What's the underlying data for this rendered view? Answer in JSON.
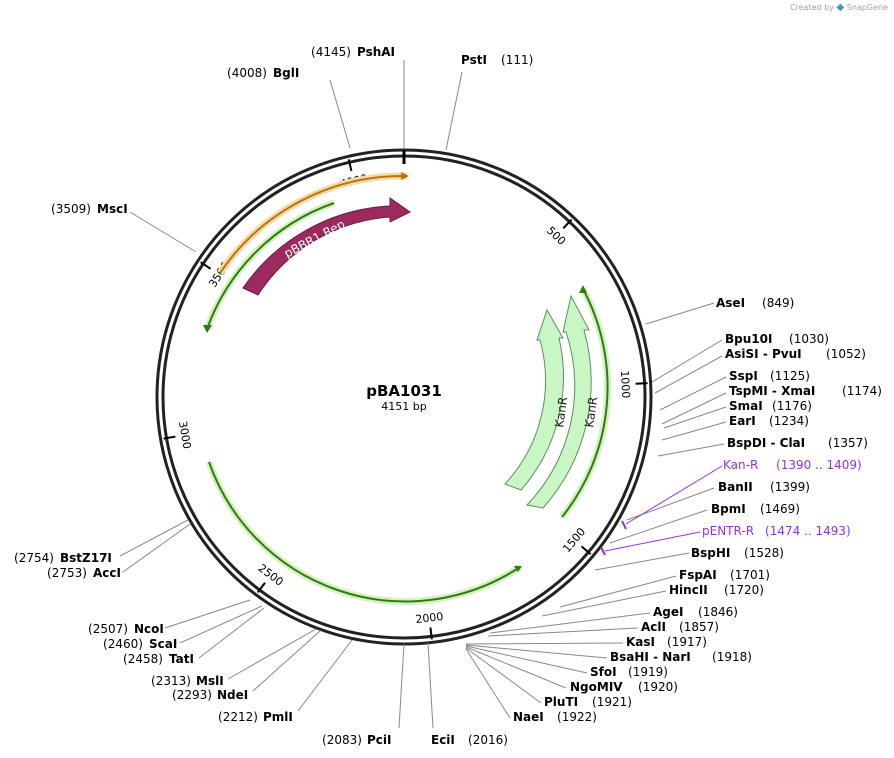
{
  "header": {
    "created_by": "Created by",
    "brand": "SnapGene"
  },
  "plasmid": {
    "name": "pBA1031",
    "length_label": "4151 bp",
    "length": 4151
  },
  "ticks": [
    500,
    1000,
    1500,
    2000,
    2500,
    3000,
    3500,
    4000
  ],
  "enzymes": [
    {
      "label": "PshAI",
      "pos": "4145"
    },
    {
      "label": "PstI",
      "pos": "111"
    },
    {
      "label": "BglI",
      "pos": "4008"
    },
    {
      "label": "MscI",
      "pos": "3509"
    },
    {
      "label": "AseI",
      "pos": "849"
    },
    {
      "label": "Bpu10I",
      "pos": "1030"
    },
    {
      "label": "AsiSI - PvuI",
      "pos": "1052"
    },
    {
      "label": "SspI",
      "pos": "1125"
    },
    {
      "label": "TspMI - XmaI",
      "pos": "1174"
    },
    {
      "label": "SmaI",
      "pos": "1176"
    },
    {
      "label": "EarI",
      "pos": "1234"
    },
    {
      "label": "BspDI - ClaI",
      "pos": "1357"
    },
    {
      "label": "BanII",
      "pos": "1399"
    },
    {
      "label": "BpmI",
      "pos": "1469"
    },
    {
      "label": "BspHI",
      "pos": "1528"
    },
    {
      "label": "FspAI",
      "pos": "1701"
    },
    {
      "label": "HincII",
      "pos": "1720"
    },
    {
      "label": "AgeI",
      "pos": "1846"
    },
    {
      "label": "AclI",
      "pos": "1857"
    },
    {
      "label": "KasI",
      "pos": "1917"
    },
    {
      "label": "BsaHI - NarI",
      "pos": "1918"
    },
    {
      "label": "SfoI",
      "pos": "1919"
    },
    {
      "label": "NgoMIV",
      "pos": "1920"
    },
    {
      "label": "PluTI",
      "pos": "1921"
    },
    {
      "label": "NaeI",
      "pos": "1922"
    },
    {
      "label": "EciI",
      "pos": "2016"
    },
    {
      "label": "PciI",
      "pos": "2083"
    },
    {
      "label": "PmlI",
      "pos": "2212"
    },
    {
      "label": "NdeI",
      "pos": "2293"
    },
    {
      "label": "MslI",
      "pos": "2313"
    },
    {
      "label": "TatI",
      "pos": "2458"
    },
    {
      "label": "ScaI",
      "pos": "2460"
    },
    {
      "label": "NcoI",
      "pos": "2507"
    },
    {
      "label": "AccI",
      "pos": "2753"
    },
    {
      "label": "BstZ17I",
      "pos": "2754"
    }
  ],
  "primers": [
    {
      "label": "Kan-R",
      "range": "1390 .. 1409"
    },
    {
      "label": "pENTR-R",
      "range": "1474 .. 1493"
    }
  ],
  "features": [
    {
      "label": "pBBR1 Rep",
      "color": "#9c2a5e"
    },
    {
      "label": "KanR",
      "color": "#c8f7c5"
    },
    {
      "label": "KanR",
      "color": "#c8f7c5"
    }
  ],
  "colors": {
    "backbone": "#222222",
    "primer": "#9b30d9",
    "orf_green": "#3a8a1a",
    "orf_orange": "#c07010"
  }
}
